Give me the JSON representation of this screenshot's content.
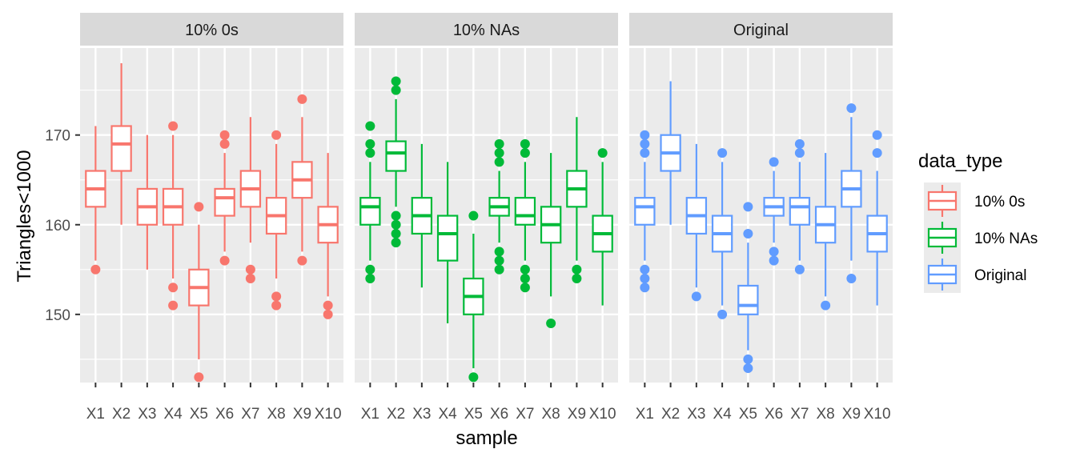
{
  "chart_data": {
    "type": "boxplot",
    "xlabel": "sample",
    "ylabel": "Triangles<1000",
    "ylim": [
      142.4,
      179.7
    ],
    "yticks": [
      150,
      160,
      170
    ],
    "grid": true,
    "categories": [
      "X1",
      "X2",
      "X3",
      "X4",
      "X5",
      "X6",
      "X7",
      "X8",
      "X9",
      "X10"
    ],
    "legend": {
      "title": "data_type",
      "placement": "right",
      "entries": [
        "10% 0s",
        "10% NAs",
        "Original"
      ]
    },
    "colors": {
      "10% 0s": "#F8766D",
      "10% NAs": "#00BA38",
      "Original": "#619CFF"
    },
    "panels": [
      {
        "label": "10% 0s",
        "series": "10% 0s",
        "boxes": [
          {
            "lo": 156,
            "q1": 162,
            "med": 164,
            "q3": 166,
            "hi": 171,
            "out": [
              155
            ]
          },
          {
            "lo": 160,
            "q1": 166,
            "med": 169,
            "q3": 171,
            "hi": 178,
            "out": []
          },
          {
            "lo": 155,
            "q1": 160,
            "med": 162,
            "q3": 164,
            "hi": 170,
            "out": []
          },
          {
            "lo": 154,
            "q1": 160,
            "med": 162,
            "q3": 164,
            "hi": 170,
            "out": [
              171,
              153,
              151
            ]
          },
          {
            "lo": 145,
            "q1": 151,
            "med": 153,
            "q3": 155,
            "hi": 160,
            "out": [
              162,
              143
            ]
          },
          {
            "lo": 157,
            "q1": 161,
            "med": 163,
            "q3": 164,
            "hi": 168,
            "out": [
              170,
              169,
              156
            ]
          },
          {
            "lo": 158,
            "q1": 162,
            "med": 164,
            "q3": 166,
            "hi": 172,
            "out": [
              155,
              154
            ]
          },
          {
            "lo": 154,
            "q1": 159,
            "med": 161,
            "q3": 163,
            "hi": 169,
            "out": [
              170,
              152,
              151
            ]
          },
          {
            "lo": 157,
            "q1": 163,
            "med": 165,
            "q3": 167,
            "hi": 172,
            "out": [
              174,
              156
            ]
          },
          {
            "lo": 152,
            "q1": 158,
            "med": 160,
            "q3": 162,
            "hi": 168,
            "out": [
              151,
              150
            ]
          }
        ]
      },
      {
        "label": "10% NAs",
        "series": "10% NAs",
        "boxes": [
          {
            "lo": 156,
            "q1": 160,
            "med": 162,
            "q3": 163,
            "hi": 167,
            "out": [
              171,
              169,
              168,
              155,
              154
            ]
          },
          {
            "lo": 162,
            "q1": 166,
            "med": 168,
            "q3": 169.3,
            "hi": 174,
            "out": [
              176,
              175,
              161,
              160,
              159,
              158
            ]
          },
          {
            "lo": 153,
            "q1": 159,
            "med": 161,
            "q3": 163,
            "hi": 169,
            "out": []
          },
          {
            "lo": 149,
            "q1": 156,
            "med": 159,
            "q3": 161,
            "hi": 167,
            "out": []
          },
          {
            "lo": 144,
            "q1": 150,
            "med": 152,
            "q3": 154,
            "hi": 159,
            "out": [
              161,
              143
            ]
          },
          {
            "lo": 158,
            "q1": 161,
            "med": 162,
            "q3": 163,
            "hi": 166,
            "out": [
              169,
              168,
              167,
              157,
              156,
              155
            ]
          },
          {
            "lo": 156,
            "q1": 160,
            "med": 161,
            "q3": 163,
            "hi": 167,
            "out": [
              169,
              168,
              155,
              154,
              153
            ]
          },
          {
            "lo": 152,
            "q1": 158,
            "med": 160,
            "q3": 162,
            "hi": 168,
            "out": [
              149
            ]
          },
          {
            "lo": 156,
            "q1": 162,
            "med": 164,
            "q3": 166,
            "hi": 172,
            "out": [
              155,
              154
            ]
          },
          {
            "lo": 151,
            "q1": 157,
            "med": 159,
            "q3": 161,
            "hi": 167,
            "out": [
              168
            ]
          }
        ]
      },
      {
        "label": "Original",
        "series": "Original",
        "boxes": [
          {
            "lo": 156,
            "q1": 160,
            "med": 162,
            "q3": 163,
            "hi": 167,
            "out": [
              170,
              169,
              168,
              155,
              154,
              153
            ]
          },
          {
            "lo": 160,
            "q1": 166,
            "med": 168,
            "q3": 170,
            "hi": 176,
            "out": []
          },
          {
            "lo": 153,
            "q1": 159,
            "med": 161,
            "q3": 163,
            "hi": 169,
            "out": [
              152
            ]
          },
          {
            "lo": 151,
            "q1": 157,
            "med": 159,
            "q3": 161,
            "hi": 167,
            "out": [
              168,
              150
            ]
          },
          {
            "lo": 146,
            "q1": 150,
            "med": 151,
            "q3": 153.2,
            "hi": 158,
            "out": [
              162,
              159,
              145,
              144
            ]
          },
          {
            "lo": 158,
            "q1": 161,
            "med": 162,
            "q3": 163,
            "hi": 166,
            "out": [
              167,
              157,
              156
            ]
          },
          {
            "lo": 156,
            "q1": 160,
            "med": 162,
            "q3": 163,
            "hi": 167,
            "out": [
              169,
              168,
              155
            ]
          },
          {
            "lo": 152,
            "q1": 158,
            "med": 160,
            "q3": 162,
            "hi": 168,
            "out": [
              151
            ]
          },
          {
            "lo": 156,
            "q1": 162,
            "med": 164,
            "q3": 166,
            "hi": 172,
            "out": [
              173,
              154
            ]
          },
          {
            "lo": 151,
            "q1": 157,
            "med": 159,
            "q3": 161,
            "hi": 166,
            "out": [
              170,
              168
            ]
          }
        ]
      }
    ]
  }
}
